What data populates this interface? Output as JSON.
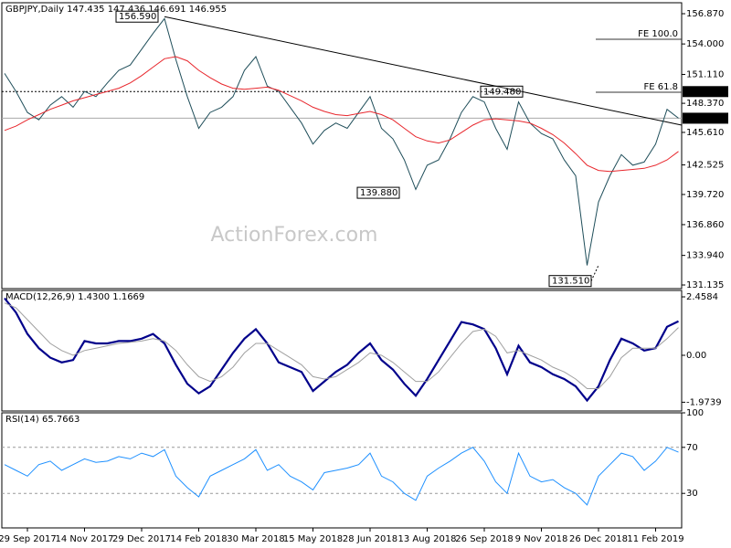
{
  "chart_data": [
    {
      "type": "line",
      "title": "GBPJPY,Daily  147.435 147.436 146.691 146.955",
      "series": [
        {
          "color": "#1f4e5a",
          "values": [
            151.2,
            149.5,
            147.5,
            146.8,
            148.2,
            149.0,
            148.0,
            149.5,
            149.0,
            150.3,
            151.5,
            152.0,
            153.5,
            155.0,
            156.4,
            152.5,
            149.0,
            146.0,
            147.5,
            148.0,
            149.0,
            151.5,
            152.8,
            150.0,
            149.5,
            148.0,
            146.5,
            144.5,
            145.8,
            146.5,
            146.0,
            147.5,
            149.0,
            146.0,
            145.0,
            143.0,
            140.2,
            142.5,
            143.0,
            145.0,
            147.5,
            149.0,
            148.5,
            146.0,
            144.0,
            148.5,
            146.5,
            145.5,
            145.0,
            143.0,
            141.5,
            133.0,
            139.0,
            141.5,
            143.5,
            142.5,
            142.8,
            144.5,
            147.8,
            146.955
          ]
        },
        {
          "color": "#e8262c",
          "values": [
            145.8,
            146.2,
            146.8,
            147.3,
            147.8,
            148.2,
            148.6,
            148.9,
            149.2,
            149.5,
            149.8,
            150.3,
            151.0,
            151.8,
            152.6,
            152.8,
            152.4,
            151.5,
            150.8,
            150.2,
            149.8,
            149.7,
            149.8,
            149.9,
            149.6,
            149.1,
            148.6,
            148.0,
            147.6,
            147.3,
            147.2,
            147.4,
            147.6,
            147.3,
            146.8,
            146.0,
            145.2,
            144.8,
            144.6,
            144.9,
            145.6,
            146.3,
            146.8,
            146.9,
            146.8,
            146.7,
            146.5,
            146.0,
            145.4,
            144.6,
            143.6,
            142.5,
            142.0,
            141.9,
            142.0,
            142.1,
            142.2,
            142.5,
            143.0,
            143.8
          ]
        }
      ],
      "ylim": [
        130.79,
        157.91
      ],
      "yticks": [
        {
          "value": 156.87,
          "label": "156.870"
        },
        {
          "value": 154,
          "label": "154.000"
        },
        {
          "value": 151.11,
          "label": "151.110"
        },
        {
          "value": 148.37,
          "label": "148.370"
        },
        {
          "value": 145.61,
          "label": "145.610"
        },
        {
          "value": 142.525,
          "label": "142.525"
        },
        {
          "value": 139.72,
          "label": "139.720"
        },
        {
          "value": 136.86,
          "label": "136.860"
        },
        {
          "value": 133.94,
          "label": "133.940"
        },
        {
          "value": 131.135,
          "label": "131.135"
        }
      ],
      "trendline": [
        156.59,
        146.3
      ],
      "annotations": [
        {
          "value": 156.59,
          "label": "156.590"
        },
        {
          "value": 139.88,
          "label": "139.880"
        },
        {
          "value": 149.48,
          "label": "149.480"
        },
        {
          "value": 131.51,
          "label": "131.510"
        }
      ],
      "fe_levels": [
        {
          "value": 154.44,
          "label": "FE 100.0"
        },
        {
          "value": 149.42,
          "label": "FE 61.8"
        }
      ],
      "price_labels": [
        {
          "value": 149.48,
          "label": "149.480"
        },
        {
          "value": 146.955,
          "label": "146.955"
        }
      ],
      "watermark": "ActionForex.com"
    },
    {
      "type": "line",
      "title": "MACD(12,26,9) 1.4300 1.1669",
      "series": [
        {
          "color": "#00008b",
          "values": [
            2.4,
            1.8,
            0.9,
            0.3,
            -0.1,
            -0.3,
            -0.2,
            0.6,
            0.5,
            0.5,
            0.6,
            0.6,
            0.7,
            0.9,
            0.5,
            -0.4,
            -1.2,
            -1.6,
            -1.3,
            -0.6,
            0.1,
            0.7,
            1.1,
            0.5,
            -0.3,
            -0.5,
            -0.7,
            -1.5,
            -1.1,
            -0.7,
            -0.4,
            0.1,
            0.5,
            -0.2,
            -0.6,
            -1.2,
            -1.7,
            -1.0,
            -0.2,
            0.6,
            1.4,
            1.3,
            1.1,
            0.3,
            -0.8,
            0.4,
            -0.3,
            -0.5,
            -0.8,
            -1.0,
            -1.3,
            -1.9,
            -1.3,
            -0.2,
            0.7,
            0.5,
            0.2,
            0.3,
            1.2,
            1.43
          ]
        },
        {
          "color": "#a0a0a0",
          "values": [
            2.2,
            2.0,
            1.5,
            1.0,
            0.5,
            0.2,
            0.0,
            0.2,
            0.3,
            0.4,
            0.5,
            0.55,
            0.6,
            0.7,
            0.6,
            0.2,
            -0.4,
            -0.9,
            -1.1,
            -0.9,
            -0.5,
            0.1,
            0.5,
            0.5,
            0.2,
            -0.1,
            -0.4,
            -0.9,
            -1.0,
            -0.9,
            -0.6,
            -0.3,
            0.1,
            0.0,
            -0.3,
            -0.7,
            -1.1,
            -1.1,
            -0.7,
            -0.1,
            0.5,
            1.0,
            1.1,
            0.8,
            0.1,
            0.2,
            0.0,
            -0.2,
            -0.5,
            -0.7,
            -1.0,
            -1.4,
            -1.4,
            -0.9,
            -0.1,
            0.3,
            0.3,
            0.3,
            0.7,
            1.1669
          ]
        }
      ],
      "ylim": [
        -2.343,
        2.728
      ],
      "yticks": [
        2.4584,
        {
          "value": 0,
          "label": "0.00"
        },
        -1.9739
      ]
    },
    {
      "type": "line",
      "title": "RSI(14) 65.7663",
      "categories": [
        null,
        null,
        "29 Sep 2017",
        null,
        null,
        null,
        null,
        "14 Nov 2017",
        null,
        null,
        null,
        null,
        "29 Dec 2017",
        null,
        null,
        null,
        null,
        "14 Feb 2018",
        null,
        null,
        null,
        null,
        "30 Mar 2018",
        null,
        null,
        null,
        null,
        "15 May 2018",
        null,
        null,
        null,
        null,
        "28 Jun 2018",
        null,
        null,
        null,
        null,
        "13 Aug 2018",
        null,
        null,
        null,
        null,
        "26 Sep 2018",
        null,
        null,
        null,
        null,
        "9 Nov 2018",
        null,
        null,
        null,
        null,
        "26 Dec 2018",
        null,
        null,
        null,
        null,
        "11 Feb 2019",
        null,
        null
      ],
      "series": [
        {
          "color": "#1e90ff",
          "values": [
            55,
            50,
            45,
            55,
            58,
            50,
            55,
            60,
            57,
            58,
            62,
            60,
            65,
            62,
            68,
            45,
            35,
            27,
            45,
            50,
            55,
            60,
            68,
            50,
            55,
            45,
            40,
            33,
            48,
            50,
            52,
            55,
            65,
            45,
            40,
            30,
            24,
            45,
            52,
            58,
            65,
            70,
            58,
            40,
            30,
            65,
            45,
            40,
            42,
            35,
            30,
            20,
            45,
            55,
            65,
            62,
            50,
            58,
            70,
            65.7663
          ]
        }
      ],
      "ylim": [
        0,
        100
      ],
      "yticks": [
        100,
        70,
        30
      ],
      "levels": [
        70,
        30
      ]
    }
  ]
}
